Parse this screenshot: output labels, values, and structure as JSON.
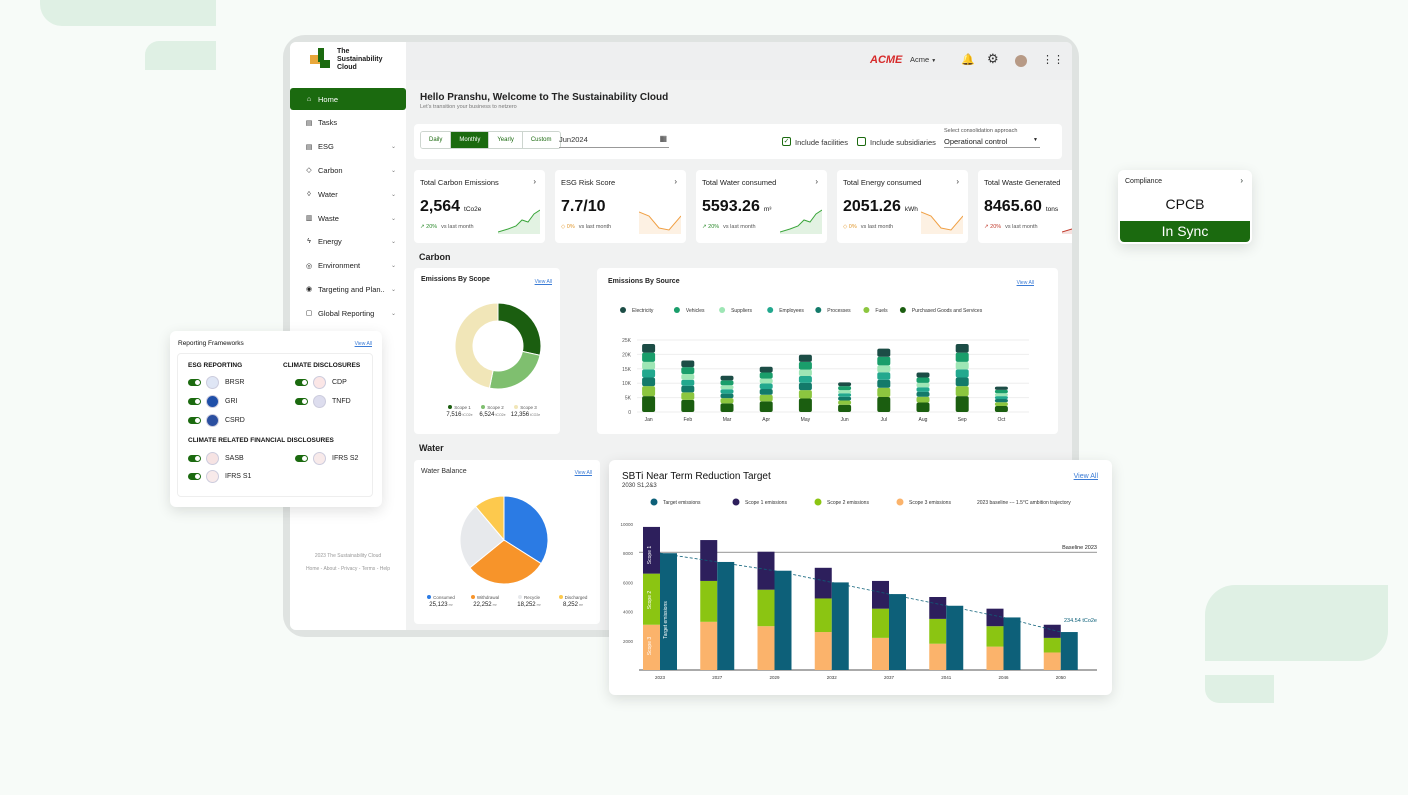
{
  "header": {
    "brand_logo": "ACME",
    "org": "Acme"
  },
  "app": {
    "name_line1": "The",
    "name_line2": "Sustainability",
    "name_line3": "Cloud"
  },
  "sidebar": {
    "items": [
      {
        "label": "Home",
        "icon": "home-icon",
        "active": true
      },
      {
        "label": "Tasks",
        "icon": "document-icon"
      },
      {
        "label": "ESG",
        "icon": "document-icon",
        "chev": true
      },
      {
        "label": "Carbon",
        "icon": "diamond-icon",
        "chev": true
      },
      {
        "label": "Water",
        "icon": "drop-icon",
        "chev": true
      },
      {
        "label": "Waste",
        "icon": "trash-icon",
        "chev": true
      },
      {
        "label": "Energy",
        "icon": "bolt-icon",
        "chev": true
      },
      {
        "label": "Environment",
        "icon": "globe-icon",
        "chev": true
      },
      {
        "label": "Targeting and Plan..",
        "icon": "target-icon",
        "chev": true
      },
      {
        "label": "Global Reporting",
        "icon": "report-icon",
        "chev": true
      }
    ],
    "copyright": "2023 The Sustainability Cloud",
    "links": "Home - About - Privacy - Terms - Help"
  },
  "welcome": {
    "title": "Hello Pranshu, Welcome to The Sustainability Cloud",
    "subtitle": "Let's transition your business to netzero"
  },
  "filters": {
    "periods": [
      "Daily",
      "Monthly",
      "Yearly",
      "Custom"
    ],
    "selected_period": "Monthly",
    "date": "Jun2024",
    "include_facilities": "Include facilities",
    "include_subsidiaries": "Include subsidiaries",
    "consolidation_label": "Select consolidation approach",
    "consolidation_value": "Operational control"
  },
  "kpis": [
    {
      "title": "Total Carbon Emissions",
      "value": "2,564",
      "unit": "tCo2e",
      "pct": "20%",
      "foot": "vs last month",
      "trend": "good",
      "color": "#3aa53a"
    },
    {
      "title": "ESG Risk Score",
      "value": "7.7/10",
      "unit": "",
      "pct": "0%",
      "foot": "vs last month",
      "trend": "neutral",
      "color": "#f0a045"
    },
    {
      "title": "Total Water consumed",
      "value": "5593.26",
      "unit": "m³",
      "pct": "20%",
      "foot": "vs last month",
      "trend": "good",
      "color": "#3aa53a"
    },
    {
      "title": "Total Energy consumed",
      "value": "2051.26",
      "unit": "kWh",
      "pct": "0%",
      "foot": "vs last month",
      "trend": "neutral",
      "color": "#f0a045"
    },
    {
      "title": "Total Waste Generated",
      "value": "8465.60",
      "unit": "tons",
      "pct": "20%",
      "foot": "vs last month",
      "trend": "bad",
      "color": "#c0392b"
    }
  ],
  "compliance": {
    "title": "Compliance",
    "value": "CPCB",
    "status": "In Sync"
  },
  "sections": {
    "carbon": "Carbon",
    "water": "Water"
  },
  "view_all": "View All",
  "scope_card": {
    "title": "Emissions By Scope",
    "slices": [
      {
        "label": "Scope 1",
        "value": 7516,
        "display": "7,516",
        "unit": "tCO2e",
        "color": "#1b5e10"
      },
      {
        "label": "Scope 2",
        "value": 6524,
        "display": "6,524",
        "unit": "tCO2e",
        "color": "#7fbf6f"
      },
      {
        "label": "Scope 3",
        "value": 12356,
        "display": "12,356",
        "unit": "tCO2e",
        "color": "#f1e6b8"
      }
    ]
  },
  "water_card": {
    "title": "Water Balance",
    "slices": [
      {
        "label": "Consumed",
        "value": 25123,
        "display": "25,123",
        "unit": "m³",
        "color": "#2b7be4"
      },
      {
        "label": "Withdrawal",
        "value": 22252,
        "display": "22,252",
        "unit": "m³",
        "color": "#f7942a"
      },
      {
        "label": "Recycle",
        "value": 18252,
        "display": "18,252",
        "unit": "m³",
        "color": "#e7e9ec"
      },
      {
        "label": "Discharged",
        "value": 8252,
        "display": "8,252",
        "unit": "m³",
        "color": "#fdc94d"
      }
    ]
  },
  "source_card": {
    "title": "Emissions By Source"
  },
  "frameworks": {
    "title": "Reporting Frameworks",
    "esg_head": "ESG REPORTING",
    "climate_head": "CLIMATE DISCLOSURES",
    "financial_head": "CLIMATE RELATED FINANCIAL DISCLOSURES",
    "esg": [
      "BRSR",
      "GRI",
      "CSRD"
    ],
    "climate": [
      "CDP",
      "TNFD"
    ],
    "financial_left": [
      "SASB",
      "IFRS S1"
    ],
    "financial_right": [
      "IFRS S2"
    ]
  },
  "sbti": {
    "title": "SBTi Near Term Reduction Target",
    "subtitle": "2030 S1,2&3",
    "baseline_label": "Baseline 2023",
    "end_label": "234.54 tCo2e",
    "legend_extra": "2023 baseline --- 1.5°C ambition trajectory",
    "inbar_labels": [
      "Scope 1",
      "Scope 2",
      "Scope 3",
      "Target emissions"
    ]
  },
  "chart_data": [
    {
      "type": "pie",
      "title": "Emissions By Scope",
      "categories": [
        "Scope 1",
        "Scope 2",
        "Scope 3"
      ],
      "values": [
        7516,
        6524,
        12356
      ]
    },
    {
      "type": "bar",
      "title": "Emissions By Source",
      "categories": [
        "Jan",
        "Feb",
        "Mar",
        "Apr",
        "May",
        "Jun",
        "Jul",
        "Aug",
        "Sep",
        "Oct"
      ],
      "series": [
        {
          "name": "Electricity",
          "color": "#1c4d46",
          "values": [
            3000,
            2300,
            1600,
            2000,
            2500,
            1300,
            2800,
            1700,
            3000,
            1100
          ]
        },
        {
          "name": "Vehicles",
          "color": "#1a9e6b",
          "values": [
            3200,
            2400,
            1700,
            2100,
            2700,
            1400,
            3000,
            1900,
            3200,
            1200
          ]
        },
        {
          "name": "Suppliers",
          "color": "#9ee6b5",
          "values": [
            2600,
            2000,
            1400,
            1700,
            2200,
            1100,
            2400,
            1500,
            2600,
            1000
          ]
        },
        {
          "name": "Employees",
          "color": "#22a88e",
          "values": [
            2800,
            2100,
            1500,
            1900,
            2400,
            1200,
            2600,
            1600,
            2800,
            1000
          ]
        },
        {
          "name": "Processes",
          "color": "#137a6a",
          "values": [
            3000,
            2300,
            1600,
            2000,
            2500,
            1300,
            2800,
            1700,
            3000,
            1100
          ]
        },
        {
          "name": "Fuels",
          "color": "#8cc63f",
          "values": [
            3500,
            2600,
            1800,
            2300,
            2900,
            1500,
            3200,
            2000,
            3500,
            1300
          ]
        },
        {
          "name": "Purchased Goods and Services",
          "color": "#1b5e10",
          "values": [
            5500,
            4200,
            3000,
            3700,
            4700,
            2500,
            5200,
            3300,
            5500,
            2100
          ]
        }
      ],
      "ylim": [
        0,
        25000
      ],
      "yticks": [
        "0",
        "5K",
        "10K",
        "15K",
        "20K",
        "25K"
      ],
      "ytick_values": [
        0,
        5000,
        10000,
        15000,
        20000,
        25000
      ]
    },
    {
      "type": "bar",
      "title": "SBTi Near Term Reduction Target",
      "categories": [
        "2023",
        "2027",
        "2029",
        "2032",
        "2037",
        "2041",
        "2046",
        "2050"
      ],
      "series": [
        {
          "name": "Scope 3 emissions",
          "color": "#fbb36b",
          "values": [
            3100,
            3300,
            3000,
            2600,
            2200,
            1800,
            1600,
            1200
          ]
        },
        {
          "name": "Scope 2 emissions",
          "color": "#8bc512",
          "values": [
            3500,
            2800,
            2500,
            2300,
            2000,
            1700,
            1400,
            1000
          ]
        },
        {
          "name": "Scope 1 emissions",
          "color": "#2d1f5c",
          "values": [
            3200,
            2800,
            2600,
            2100,
            1900,
            1500,
            1200,
            900
          ]
        },
        {
          "name": "Target emissions",
          "color": "#0d6079",
          "values": [
            8000,
            7400,
            6800,
            6000,
            5200,
            4400,
            3600,
            2600
          ]
        }
      ],
      "ylim": [
        0,
        10000
      ],
      "yticks": [
        "0",
        "2000",
        "4000",
        "6000",
        "8000",
        "10000"
      ],
      "ytick_values": [
        0,
        2000,
        4000,
        6000,
        8000,
        10000
      ],
      "baseline": 8000
    },
    {
      "type": "pie",
      "title": "Water Balance",
      "categories": [
        "Consumed",
        "Withdrawal",
        "Recycle",
        "Discharged"
      ],
      "values": [
        25123,
        22252,
        18252,
        8252
      ]
    }
  ]
}
